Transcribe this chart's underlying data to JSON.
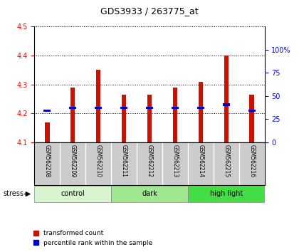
{
  "title": "GDS3933 / 263775_at",
  "samples": [
    "GSM562208",
    "GSM562209",
    "GSM562210",
    "GSM562211",
    "GSM562212",
    "GSM562213",
    "GSM562214",
    "GSM562215",
    "GSM562216"
  ],
  "red_top": [
    4.17,
    4.29,
    4.35,
    4.265,
    4.265,
    4.29,
    4.31,
    4.4,
    4.265
  ],
  "blue_val": [
    4.21,
    4.22,
    4.22,
    4.22,
    4.22,
    4.22,
    4.22,
    4.23,
    4.21
  ],
  "bar_bottom": 4.1,
  "ylim": [
    4.1,
    4.5
  ],
  "yticks_left": [
    4.1,
    4.2,
    4.3,
    4.4,
    4.5
  ],
  "yticks_right": [
    0,
    25,
    50,
    75,
    100
  ],
  "groups": [
    {
      "label": "control",
      "start": 0,
      "end": 3,
      "color": "#d8f5d0"
    },
    {
      "label": "dark",
      "start": 3,
      "end": 6,
      "color": "#a0e890"
    },
    {
      "label": "high light",
      "start": 6,
      "end": 9,
      "color": "#44dd44"
    }
  ],
  "stress_label": "stress",
  "bar_color": "#cc1100",
  "blue_color": "#0000cc",
  "label_bg": "#cccccc",
  "legend_red": "transformed count",
  "legend_blue": "percentile rank within the sample",
  "bar_width": 0.18
}
